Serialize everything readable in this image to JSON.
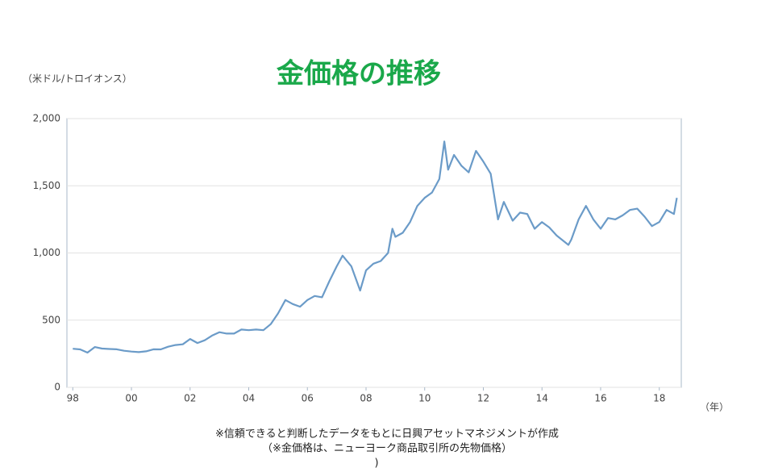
{
  "chart_data": {
    "type": "line",
    "title": "金価格の推移",
    "y_label": "（米ドル/トロイオンス）",
    "x_label": "（年）",
    "notes": [
      "※信頼できると判断したデータをもとに日興アセットマネジメントが作成",
      "（※金価格は、ニューヨーク商品取引所の先物価格）",
      ")"
    ],
    "xlim": [
      1997.8,
      2018.75
    ],
    "xticks": [
      {
        "value": 1998,
        "label": "98"
      },
      {
        "value": 2000,
        "label": "00"
      },
      {
        "value": 2002,
        "label": "02"
      },
      {
        "value": 2004,
        "label": "04"
      },
      {
        "value": 2006,
        "label": "06"
      },
      {
        "value": 2008,
        "label": "08"
      },
      {
        "value": 2010,
        "label": "10"
      },
      {
        "value": 2012,
        "label": "12"
      },
      {
        "value": 2014,
        "label": "14"
      },
      {
        "value": 2016,
        "label": "16"
      },
      {
        "value": 2018,
        "label": "18"
      }
    ],
    "ylim": [
      0,
      2000
    ],
    "yticks": [
      0,
      500,
      {
        "value": 1000,
        "label": "1,000"
      },
      {
        "value": 1500,
        "label": "1,500"
      },
      {
        "value": 2000,
        "label": "2,000"
      }
    ],
    "grid": true,
    "series": [
      {
        "color": "#6b9bc8",
        "x": [
          1998.0,
          1998.25,
          1998.5,
          1998.75,
          1999.0,
          1999.25,
          1999.5,
          1999.75,
          2000.0,
          2000.25,
          2000.5,
          2000.75,
          2001.0,
          2001.25,
          2001.5,
          2001.75,
          2002.0,
          2002.25,
          2002.5,
          2002.75,
          2003.0,
          2003.25,
          2003.5,
          2003.75,
          2004.0,
          2004.25,
          2004.5,
          2004.75,
          2005.0,
          2005.25,
          2005.5,
          2005.75,
          2006.0,
          2006.25,
          2006.5,
          2006.75,
          2007.0,
          2007.2,
          2007.5,
          2007.8,
          2008.0,
          2008.25,
          2008.5,
          2008.75,
          2008.9,
          2009.0,
          2009.25,
          2009.5,
          2009.75,
          2010.0,
          2010.25,
          2010.5,
          2010.67,
          2010.8,
          2011.0,
          2011.25,
          2011.5,
          2011.75,
          2012.0,
          2012.25,
          2012.5,
          2012.7,
          2013.0,
          2013.25,
          2013.5,
          2013.75,
          2014.0,
          2014.25,
          2014.5,
          2014.9,
          2015.0,
          2015.25,
          2015.5,
          2015.75,
          2016.0,
          2016.25,
          2016.5,
          2016.75,
          2017.0,
          2017.25,
          2017.5,
          2017.75,
          2018.0,
          2018.25,
          2018.5,
          2018.6
        ],
        "values": [
          287,
          282,
          258,
          300,
          288,
          285,
          283,
          272,
          266,
          262,
          268,
          283,
          282,
          302,
          315,
          320,
          360,
          330,
          350,
          385,
          410,
          400,
          400,
          430,
          425,
          430,
          425,
          470,
          550,
          650,
          620,
          600,
          650,
          680,
          670,
          790,
          900,
          980,
          900,
          720,
          870,
          920,
          940,
          1000,
          1180,
          1120,
          1150,
          1230,
          1350,
          1410,
          1450,
          1550,
          1830,
          1620,
          1730,
          1650,
          1600,
          1760,
          1680,
          1590,
          1250,
          1380,
          1240,
          1300,
          1290,
          1180,
          1230,
          1190,
          1130,
          1060,
          1100,
          1250,
          1350,
          1250,
          1180,
          1260,
          1250,
          1280,
          1320,
          1330,
          1270,
          1200,
          1230,
          1320,
          1290,
          1410
        ]
      }
    ]
  }
}
